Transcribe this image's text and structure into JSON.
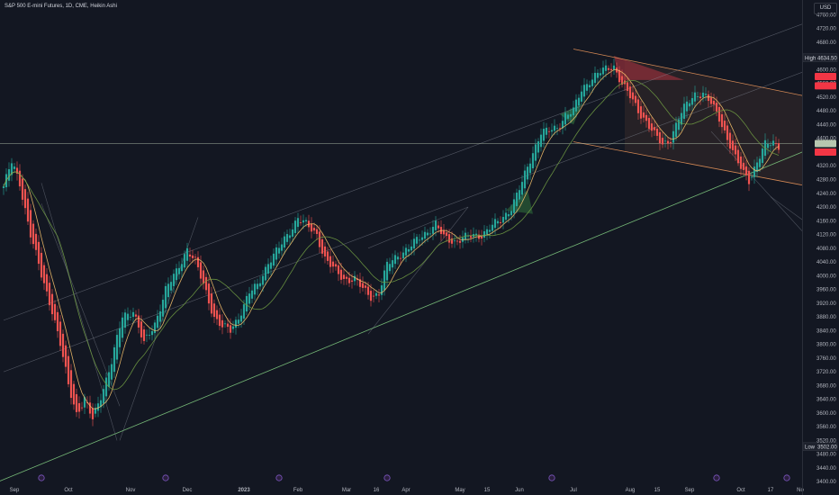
{
  "header": {
    "title": "S&P 500 E-mini Futures, 1D, CME, Heikin Ashi",
    "currency": "USD"
  },
  "colors": {
    "background": "#131722",
    "up": "#26a69a",
    "down": "#ef5350",
    "ma_fast": "#f4c06c",
    "ma_slow": "#6f9a43",
    "channel_orange": "#e8955a",
    "channel_green": "#7fc97f",
    "channel_gray": "#8a8f9c",
    "price_line": "#b7c7b0"
  },
  "chart_data": {
    "type": "candlestick",
    "title": "S&P 500 E-mini Futures, 1D, CME, Heikin Ashi",
    "y_ticks": [
      3400,
      3440,
      3480,
      3520,
      3560,
      3600,
      3640,
      3680,
      3720,
      3760,
      3800,
      3840,
      3880,
      3920,
      3960,
      4000,
      4040,
      4080,
      4120,
      4160,
      4200,
      4240,
      4280,
      4320,
      4360,
      4400,
      4440,
      4480,
      4520,
      4560,
      4600,
      4640,
      4680,
      4720,
      4760
    ],
    "ylim": [
      3390,
      4782
    ],
    "x_ticks": [
      {
        "label": "Sep",
        "i": 4
      },
      {
        "label": "Oct",
        "i": 24
      },
      {
        "label": "Nov",
        "i": 47
      },
      {
        "label": "Dec",
        "i": 68
      },
      {
        "label": "2023",
        "i": 89
      },
      {
        "label": "Feb",
        "i": 109
      },
      {
        "label": "Mar",
        "i": 127
      },
      {
        "label": "16",
        "i": 138
      },
      {
        "label": "Apr",
        "i": 149
      },
      {
        "label": "May",
        "i": 169
      },
      {
        "label": "15",
        "i": 179
      },
      {
        "label": "Jun",
        "i": 191
      },
      {
        "label": "Jul",
        "i": 211
      },
      {
        "label": "Aug",
        "i": 232
      },
      {
        "label": "15",
        "i": 242
      },
      {
        "label": "Sep",
        "i": 254
      },
      {
        "label": "Oct",
        "i": 273
      },
      {
        "label": "17",
        "i": 284
      },
      {
        "label": "No",
        "i": 295
      }
    ],
    "keypoints": [
      [
        0,
        4260
      ],
      [
        3,
        4330
      ],
      [
        6,
        4270
      ],
      [
        10,
        4120
      ],
      [
        14,
        4000
      ],
      [
        18,
        3900
      ],
      [
        21,
        3800
      ],
      [
        24,
        3680
      ],
      [
        27,
        3600
      ],
      [
        30,
        3640
      ],
      [
        33,
        3580
      ],
      [
        36,
        3650
      ],
      [
        40,
        3750
      ],
      [
        44,
        3880
      ],
      [
        48,
        3900
      ],
      [
        52,
        3800
      ],
      [
        56,
        3860
      ],
      [
        60,
        3960
      ],
      [
        64,
        4010
      ],
      [
        68,
        4080
      ],
      [
        71,
        4040
      ],
      [
        75,
        3950
      ],
      [
        78,
        3880
      ],
      [
        81,
        3850
      ],
      [
        84,
        3840
      ],
      [
        87,
        3880
      ],
      [
        91,
        3950
      ],
      [
        94,
        3970
      ],
      [
        98,
        4040
      ],
      [
        102,
        4080
      ],
      [
        106,
        4130
      ],
      [
        109,
        4170
      ],
      [
        113,
        4140
      ],
      [
        116,
        4120
      ],
      [
        119,
        4050
      ],
      [
        122,
        4020
      ],
      [
        126,
        3990
      ],
      [
        130,
        3990
      ],
      [
        133,
        3960
      ],
      [
        136,
        3940
      ],
      [
        139,
        3950
      ],
      [
        142,
        4030
      ],
      [
        146,
        4060
      ],
      [
        150,
        4080
      ],
      [
        154,
        4110
      ],
      [
        157,
        4130
      ],
      [
        160,
        4150
      ],
      [
        163,
        4110
      ],
      [
        167,
        4100
      ],
      [
        170,
        4110
      ],
      [
        174,
        4115
      ],
      [
        177,
        4120
      ],
      [
        180,
        4140
      ],
      [
        184,
        4160
      ],
      [
        188,
        4200
      ],
      [
        192,
        4270
      ],
      [
        196,
        4360
      ],
      [
        199,
        4420
      ],
      [
        202,
        4420
      ],
      [
        205,
        4430
      ],
      [
        208,
        4470
      ],
      [
        211,
        4480
      ],
      [
        214,
        4540
      ],
      [
        217,
        4570
      ],
      [
        220,
        4590
      ],
      [
        223,
        4600
      ],
      [
        226,
        4610
      ],
      [
        229,
        4560
      ],
      [
        232,
        4520
      ],
      [
        235,
        4480
      ],
      [
        238,
        4450
      ],
      [
        241,
        4410
      ],
      [
        244,
        4380
      ],
      [
        247,
        4400
      ],
      [
        250,
        4460
      ],
      [
        253,
        4500
      ],
      [
        256,
        4530
      ],
      [
        259,
        4530
      ],
      [
        262,
        4500
      ],
      [
        265,
        4460
      ],
      [
        268,
        4400
      ],
      [
        271,
        4340
      ],
      [
        274,
        4300
      ],
      [
        276,
        4280
      ],
      [
        279,
        4330
      ],
      [
        282,
        4380
      ],
      [
        285,
        4390
      ],
      [
        287,
        4380
      ]
    ],
    "series": [
      {
        "name": "MA fast",
        "type": "line"
      },
      {
        "name": "MA slow",
        "type": "line"
      }
    ],
    "channels": [
      {
        "color": "orange",
        "p1": [
          211,
          4660
        ],
        "p2": [
          305,
          4510
        ]
      },
      {
        "color": "orange",
        "p1": [
          211,
          4390
        ],
        "p2": [
          305,
          4250
        ]
      },
      {
        "color": "green",
        "p1": [
          -5,
          3390
        ],
        "p2": [
          305,
          4390
        ]
      },
      {
        "color": "gray",
        "p1": [
          0,
          3720
        ],
        "p2": [
          305,
          4620
        ]
      },
      {
        "color": "gray",
        "p1": [
          0,
          3870
        ],
        "p2": [
          305,
          4760
        ]
      }
    ],
    "high": {
      "label": "High",
      "value": "4634.50",
      "price": 4634.5
    },
    "low": {
      "label": "Low",
      "value": "3502.00",
      "price": 3502
    },
    "last_price": 4385,
    "price_flags": [
      {
        "price": 4580,
        "color": "#f23645"
      },
      {
        "price": 4553,
        "color": "#f23645"
      },
      {
        "price": 4385,
        "color": "#b7c7b0"
      },
      {
        "price": 4360,
        "color": "#f23645"
      }
    ],
    "event_markers": [
      14,
      60,
      102,
      142,
      203,
      264,
      290
    ],
    "grid": false,
    "legend": "none"
  }
}
